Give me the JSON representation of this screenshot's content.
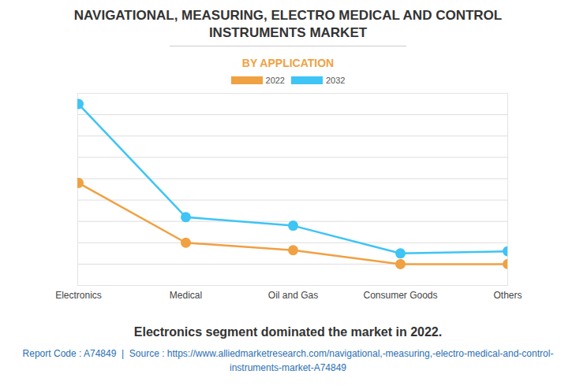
{
  "chart_data": {
    "type": "line",
    "title": "NAVIGATIONAL, MEASURING, ELECTRO MEDICAL AND CONTROL INSTRUMENTS MARKET",
    "subtitle": "BY APPLICATION",
    "caption": "Electronics segment dominated the market in 2022.",
    "source": "Report Code : A74849  |  Source : https://www.alliedmarketresearch.com/navigational,-measuring,-electro-medical-and-control-instruments-market-A74849",
    "categories": [
      "Electronics",
      "Medical",
      "Oil and Gas",
      "Consumer Goods",
      "Others"
    ],
    "series": [
      {
        "name": "2022",
        "color": "#f0a142",
        "marker": "circle",
        "values": [
          4.8,
          2.0,
          1.65,
          1.0,
          1.0
        ]
      },
      {
        "name": "2032",
        "color": "#3ec4f5",
        "marker": "circle",
        "values": [
          8.5,
          3.2,
          2.8,
          1.5,
          1.6
        ]
      }
    ],
    "ylim": [
      0,
      9
    ],
    "yticks": [
      0,
      1,
      2,
      3,
      4,
      5,
      6,
      7,
      8,
      9
    ],
    "grid": true,
    "legend": "top",
    "tick_labels": "x"
  }
}
